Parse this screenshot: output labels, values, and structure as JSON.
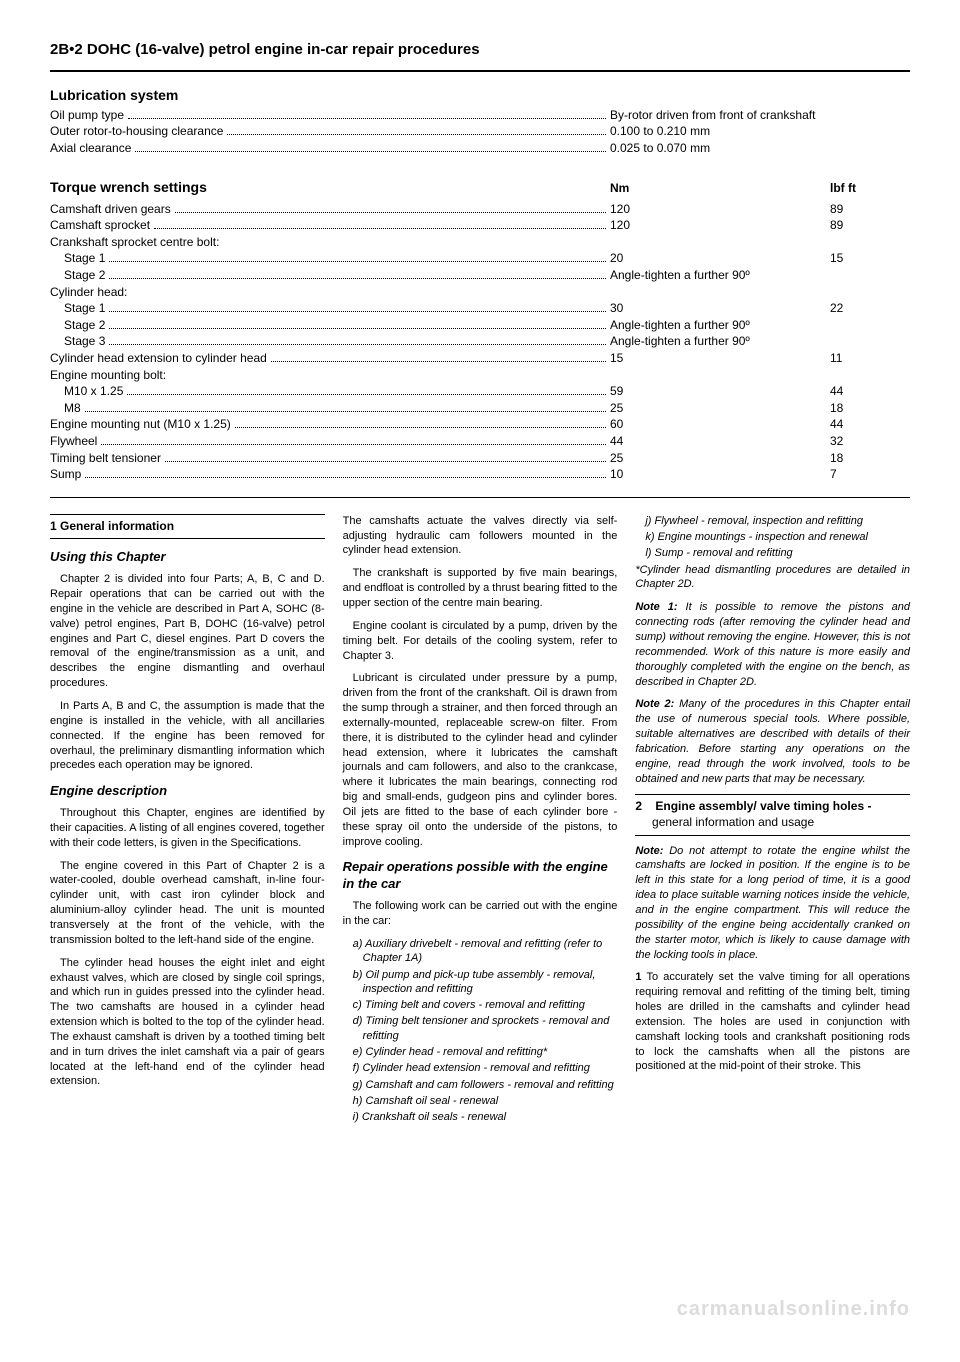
{
  "page_header": "2B•2  DOHC (16-valve) petrol engine in-car repair procedures",
  "lubrication": {
    "title": "Lubrication system",
    "rows": [
      {
        "label": "Oil pump type",
        "val": "By-rotor driven from front of crankshaft"
      },
      {
        "label": "Outer rotor-to-housing clearance",
        "val": "0.100 to 0.210 mm"
      },
      {
        "label": "Axial clearance",
        "val": "0.025 to 0.070 mm"
      }
    ]
  },
  "torque": {
    "title": "Torque wrench settings",
    "nm_header": "Nm",
    "lbf_header": "lbf ft",
    "rows": [
      {
        "label": "Camshaft driven gears",
        "nm": "120",
        "lbf": "89"
      },
      {
        "label": "Camshaft sprocket",
        "nm": "120",
        "lbf": "89"
      },
      {
        "label": "Crankshaft sprocket centre bolt:",
        "nm": "",
        "lbf": "",
        "nodots": true
      },
      {
        "label": "Stage 1",
        "nm": "20",
        "lbf": "15",
        "indent": 1
      },
      {
        "label": "Stage 2",
        "nm": "Angle-tighten a further 90º",
        "lbf": "",
        "indent": 1
      },
      {
        "label": "Cylinder head:",
        "nm": "",
        "lbf": "",
        "nodots": true
      },
      {
        "label": "Stage 1",
        "nm": "30",
        "lbf": "22",
        "indent": 1
      },
      {
        "label": "Stage 2",
        "nm": "Angle-tighten a further 90º",
        "lbf": "",
        "indent": 1
      },
      {
        "label": "Stage 3",
        "nm": "Angle-tighten a further 90º",
        "lbf": "",
        "indent": 1
      },
      {
        "label": "Cylinder head extension to cylinder head",
        "nm": "15",
        "lbf": "11"
      },
      {
        "label": "Engine mounting bolt:",
        "nm": "",
        "lbf": "",
        "nodots": true
      },
      {
        "label": "M10 x 1.25",
        "nm": "59",
        "lbf": "44",
        "indent": 1
      },
      {
        "label": "M8",
        "nm": "25",
        "lbf": "18",
        "indent": 1
      },
      {
        "label": "Engine mounting nut (M10 x 1.25)",
        "nm": "60",
        "lbf": "44"
      },
      {
        "label": "Flywheel",
        "nm": "44",
        "lbf": "32"
      },
      {
        "label": "Timing belt tensioner",
        "nm": "25",
        "lbf": "18"
      },
      {
        "label": "Sump",
        "nm": "10",
        "lbf": "7"
      }
    ]
  },
  "col1": {
    "h1": "1   General information",
    "sub1": "Using this Chapter",
    "p1": "Chapter 2 is divided into four Parts; A, B, C and D. Repair operations that can be carried out with the engine in the vehicle are described in Part A, SOHC (8-valve) petrol engines, Part B, DOHC (16-valve) petrol engines and Part C, diesel engines. Part D covers the removal of the engine/transmission as a unit, and describes the engine dismantling and overhaul procedures.",
    "p2": "In Parts A, B and C, the assumption is made that the engine is installed in the vehicle, with all ancillaries connected. If the engine has been removed for overhaul, the preliminary dismantling information which precedes each operation may be ignored.",
    "sub2": "Engine description",
    "p3": "Throughout this Chapter, engines are identified by their capacities. A listing of all engines covered, together with their code letters, is given in the Specifications.",
    "p4": "The engine covered in this Part of Chapter 2 is a water-cooled, double overhead camshaft, in-line four-cylinder unit, with cast iron cylinder block and aluminium-alloy cylinder head. The unit is mounted transversely at the front of the vehicle, with the transmission bolted to the left-hand side of the engine.",
    "p5": "The cylinder head houses the eight inlet and eight exhaust valves, which are closed by single coil springs, and which run in guides pressed into the cylinder head. The two camshafts are housed in a cylinder head extension which is bolted to the top of the cylinder head. The exhaust camshaft is driven by a toothed timing belt and in turn drives the inlet camshaft via a pair of gears located at the left-hand end of the cylinder head extension."
  },
  "col2": {
    "p1": "The camshafts actuate the valves directly via self-adjusting hydraulic cam followers mounted in the cylinder head extension.",
    "p2": "The crankshaft is supported by five main bearings, and endfloat is controlled by a thrust bearing fitted to the upper section of the centre main bearing.",
    "p3": "Engine coolant is circulated by a pump, driven by the timing belt. For details of the cooling system, refer to Chapter 3.",
    "p4": "Lubricant is circulated under pressure by a pump, driven from the front of the crankshaft. Oil is drawn from the sump through a strainer, and then forced through an externally-mounted, replaceable screw-on filter. From there, it is distributed to the cylinder head and cylinder head extension, where it lubricates the camshaft journals and cam followers, and also to the crankcase, where it lubricates the main bearings, connecting rod big and small-ends, gudgeon pins and cylinder bores. Oil jets are fitted to the base of each cylinder bore - these spray oil onto the underside of the pistons, to improve cooling.",
    "sub1": "Repair operations possible with the engine in the car",
    "p5": "The following work can be carried out with the engine in the car:",
    "list": [
      "a) Auxiliary drivebelt - removal and refitting (refer to Chapter 1A)",
      "b) Oil pump and pick-up tube assembly - removal, inspection and refitting",
      "c) Timing belt and covers - removal and refitting",
      "d) Timing belt tensioner and sprockets - removal and refitting",
      "e) Cylinder head - removal and refitting*",
      "f) Cylinder head extension - removal and refitting",
      "g) Camshaft and cam followers - removal and refitting",
      "h) Camshaft oil seal - renewal",
      "i) Crankshaft oil seals - renewal"
    ]
  },
  "col3": {
    "list_top": [
      "j) Flywheel - removal, inspection and refitting",
      "k) Engine mountings - inspection and renewal",
      "l) Sump - removal and refitting"
    ],
    "p1": "*Cylinder head dismantling procedures are detailed in Chapter 2D.",
    "note1_label": "Note 1:",
    "note1": " It is possible to remove the pistons and connecting rods (after removing the cylinder head and sump) without removing the engine. However, this is not recommended. Work of this nature is more easily and thoroughly completed with the engine on the bench, as described in Chapter 2D.",
    "note2_label": "Note 2:",
    "note2": " Many of the procedures in this Chapter entail the use of numerous special tools. Where possible, suitable alternatives are described with details of their fabrication. Before starting any operations on the engine, read through the work involved, tools to be obtained and new parts that may be necessary.",
    "h2_num": "2",
    "h2_title": "Engine assembly/ valve timing holes -",
    "h2_sub": "general information and usage",
    "note3_label": "Note:",
    "note3": " Do not attempt to rotate the engine whilst the camshafts are locked in position. If the engine is to be left in this state for a long period of time, it is a good idea to place suitable warning notices inside the vehicle, and in the engine compartment. This will reduce the possibility of the engine being accidentally cranked on the starter motor, which is likely to cause damage with the locking tools in place.",
    "p2_num": "1",
    "p2": " To accurately set the valve timing for all operations requiring removal and refitting of the timing belt, timing holes are drilled in the camshafts and cylinder head extension. The holes are used in conjunction with camshaft locking tools and crankshaft positioning rods to lock the camshafts when all the pistons are positioned at the mid-point of their stroke. This"
  },
  "watermark": "carmanualsonline.info"
}
